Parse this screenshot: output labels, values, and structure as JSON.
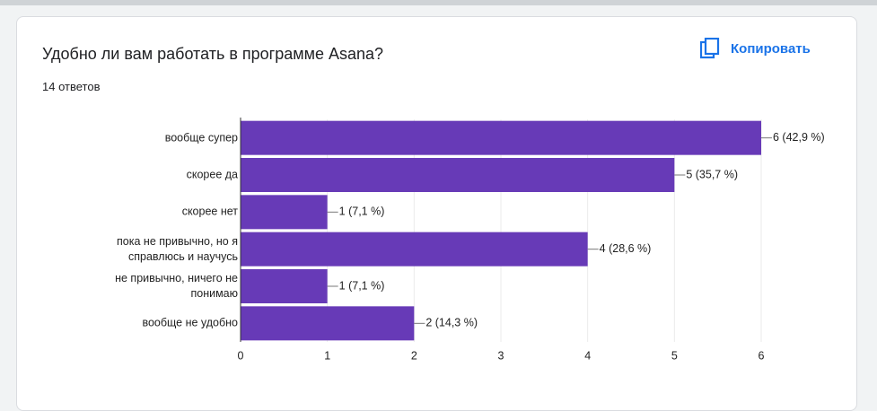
{
  "chart_data": {
    "type": "bar",
    "orientation": "horizontal",
    "title": "Удобно ли вам работать в программе Asana?",
    "subtitle": "14 ответов",
    "copy_button": "Копировать",
    "categories": [
      "вообще супер",
      "скорее да",
      "скорее нет",
      "пока не привычно, но я\nсправлюсь и научусь",
      "не привычно, ничего не\nпонимаю",
      "вообще не удобно"
    ],
    "values": [
      6,
      5,
      1,
      4,
      1,
      2
    ],
    "value_labels": [
      "6 (42,9 %)",
      "5 (35,7 %)",
      "1 (7,1 %)",
      "4 (28,6 %)",
      "1 (7,1 %)",
      "2 (14,3 %)"
    ],
    "color": "#673ab7",
    "xlim": [
      0,
      6
    ],
    "xticks": [
      0,
      1,
      2,
      3,
      4,
      5,
      6
    ],
    "grid": true
  }
}
